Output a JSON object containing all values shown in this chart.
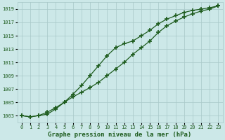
{
  "line1_x": [
    0,
    1,
    2,
    3,
    4,
    5,
    6,
    7,
    8,
    9,
    10,
    11,
    12,
    13,
    14,
    15,
    16,
    17,
    18,
    19,
    20,
    21,
    22,
    23
  ],
  "line1_y": [
    1003.0,
    1002.8,
    1003.0,
    1003.2,
    1004.0,
    1005.0,
    1006.2,
    1007.5,
    1009.0,
    1010.5,
    1012.0,
    1013.2,
    1013.8,
    1014.2,
    1015.0,
    1015.8,
    1016.8,
    1017.5,
    1018.0,
    1018.5,
    1018.8,
    1019.0,
    1019.2,
    1019.5
  ],
  "line2_x": [
    0,
    1,
    2,
    3,
    4,
    5,
    6,
    7,
    8,
    9,
    10,
    11,
    12,
    13,
    14,
    15,
    16,
    17,
    18,
    19,
    20,
    21,
    22,
    23
  ],
  "line2_y": [
    1003.0,
    1002.8,
    1003.0,
    1003.5,
    1004.2,
    1005.0,
    1005.8,
    1006.5,
    1007.2,
    1008.0,
    1009.0,
    1010.0,
    1011.0,
    1012.2,
    1013.2,
    1014.2,
    1015.5,
    1016.5,
    1017.2,
    1017.8,
    1018.3,
    1018.7,
    1019.0,
    1019.5
  ],
  "line_color": "#1e5c1e",
  "marker": "+",
  "marker_size": 4,
  "marker_ew": 1.2,
  "bg_color": "#cce8e8",
  "grid_color": "#a8c8c8",
  "text_color": "#1e5c1e",
  "ylim": [
    1002.0,
    1020.0
  ],
  "yticks": [
    1003,
    1005,
    1007,
    1009,
    1011,
    1013,
    1015,
    1017,
    1019
  ],
  "xlim": [
    -0.5,
    23.5
  ],
  "xticks": [
    0,
    1,
    2,
    3,
    4,
    5,
    6,
    7,
    8,
    9,
    10,
    11,
    12,
    13,
    14,
    15,
    16,
    17,
    18,
    19,
    20,
    21,
    22,
    23
  ],
  "xlabel": "Graphe pression niveau de la mer (hPa)",
  "xlabel_fontsize": 6.5,
  "tick_fontsize": 5.0,
  "linewidth": 0.9
}
